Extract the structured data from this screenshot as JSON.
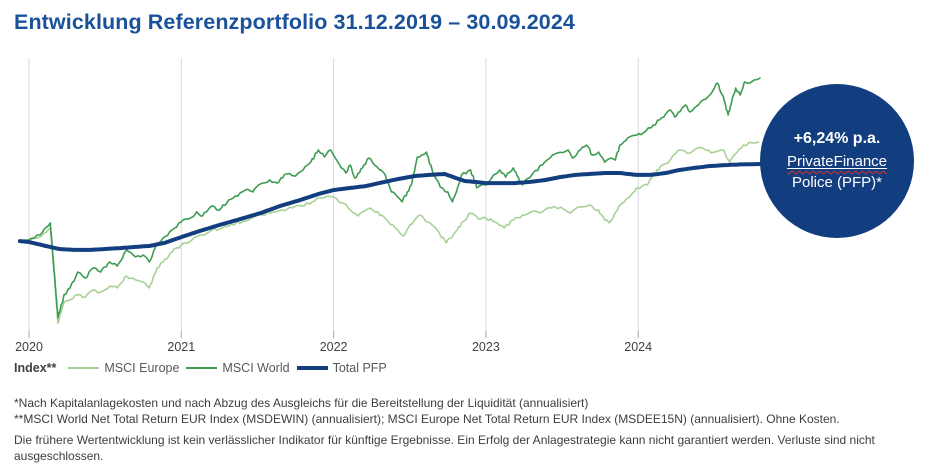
{
  "title": "Entwicklung Referenzportfolio 31.12.2019 – 30.09.2024",
  "badge": {
    "line1": "+6,24% p.a.",
    "line2": "PrivateFinance",
    "line3": "Police (PFP)*",
    "bg_color": "#123e7f",
    "text_color": "#ffffff"
  },
  "legend": {
    "prefix": "Index**",
    "items": [
      {
        "label": "MSCI Europe",
        "color": "#a8d198"
      },
      {
        "label": "MSCI World",
        "color": "#3f9b52"
      },
      {
        "label": "Total PFP",
        "color": "#123e7f"
      }
    ]
  },
  "footnotes": [
    "*Nach Kapitalanlagekosten und nach Abzug des Ausgleichs für die Bereitstellung der Liquidität (annualisiert)",
    "**MSCI World Net Total Return EUR Index (MSDEWIN) (annualisiert); MSCI Europe Net Total Return EUR Index (MSDEE15N) (annualisiert). Ohne Kosten.",
    "Die frühere Wertentwicklung ist kein verlässlicher Indikator für künftige Ergebnisse. Ein Erfolg der Anlagestrategie kann nicht garantiert werden. Verluste sind nicht ausgeschlossen."
  ],
  "chart_data": {
    "type": "line",
    "title": "Entwicklung Referenzportfolio 31.12.2019 – 30.09.2024",
    "normalization": "Index 31.12.2019 = 100 (no visible y-axis)",
    "annotation": "+6,24% p.a. PrivateFinance Police (PFP)*",
    "grid": "vertical year gridlines only",
    "legend_position": "below chart",
    "x_axis": {
      "unit": "years since 31.12.2019",
      "tick_labels": [
        "2020",
        "2021",
        "2022",
        "2023",
        "2024"
      ],
      "tick_positions": [
        0,
        1,
        2,
        3,
        4
      ]
    },
    "y_axis": {
      "visible": false,
      "implied_range": [
        60,
        178
      ]
    },
    "series": [
      {
        "name": "MSCI Europe",
        "color": "#a8d198",
        "width": 1.6,
        "jitter": 1.6,
        "points": [
          [
            -0.06,
            100
          ],
          [
            0,
            100.9
          ],
          [
            0.07,
            102.1
          ],
          [
            0.14,
            106
          ],
          [
            0.16,
            90.1
          ],
          [
            0.19,
            65.2
          ],
          [
            0.23,
            74.2
          ],
          [
            0.27,
            75.1
          ],
          [
            0.32,
            77.3
          ],
          [
            0.37,
            76.4
          ],
          [
            0.42,
            79.4
          ],
          [
            0.47,
            78.5
          ],
          [
            0.53,
            81.1
          ],
          [
            0.58,
            80.3
          ],
          [
            0.64,
            85.4
          ],
          [
            0.7,
            83.7
          ],
          [
            0.75,
            82.8
          ],
          [
            0.79,
            80.3
          ],
          [
            0.84,
            88.8
          ],
          [
            0.88,
            91.4
          ],
          [
            0.94,
            95.7
          ],
          [
            1.0,
            98.7
          ],
          [
            1.07,
            100.9
          ],
          [
            1.14,
            103
          ],
          [
            1.2,
            105.2
          ],
          [
            1.27,
            106
          ],
          [
            1.33,
            107.7
          ],
          [
            1.4,
            108.6
          ],
          [
            1.46,
            110.3
          ],
          [
            1.53,
            111.6
          ],
          [
            1.6,
            112.9
          ],
          [
            1.66,
            113.7
          ],
          [
            1.73,
            114.6
          ],
          [
            1.79,
            115.5
          ],
          [
            1.86,
            117.2
          ],
          [
            1.91,
            118.9
          ],
          [
            1.96,
            119.7
          ],
          [
            2.0,
            119.3
          ],
          [
            2.06,
            116.7
          ],
          [
            2.11,
            113.7
          ],
          [
            2.16,
            111.2
          ],
          [
            2.19,
            112.9
          ],
          [
            2.24,
            114.6
          ],
          [
            2.29,
            112.9
          ],
          [
            2.36,
            108.6
          ],
          [
            2.42,
            105.2
          ],
          [
            2.46,
            102.6
          ],
          [
            2.5,
            107.3
          ],
          [
            2.57,
            111.6
          ],
          [
            2.62,
            108.6
          ],
          [
            2.69,
            104.3
          ],
          [
            2.74,
            99.6
          ],
          [
            2.8,
            104.3
          ],
          [
            2.84,
            108.2
          ],
          [
            2.9,
            112.4
          ],
          [
            2.95,
            109.9
          ],
          [
            3.0,
            110.3
          ],
          [
            3.06,
            108.6
          ],
          [
            3.12,
            106
          ],
          [
            3.18,
            109.4
          ],
          [
            3.24,
            111.6
          ],
          [
            3.31,
            113.3
          ],
          [
            3.37,
            112.9
          ],
          [
            3.43,
            114.6
          ],
          [
            3.49,
            115
          ],
          [
            3.55,
            112.4
          ],
          [
            3.62,
            115
          ],
          [
            3.68,
            115.9
          ],
          [
            3.74,
            113.7
          ],
          [
            3.78,
            109.4
          ],
          [
            3.81,
            108.2
          ],
          [
            3.88,
            115.9
          ],
          [
            3.93,
            118.9
          ],
          [
            3.99,
            123.2
          ],
          [
            4.06,
            124.5
          ],
          [
            4.1,
            128.8
          ],
          [
            4.16,
            133
          ],
          [
            4.21,
            135.2
          ],
          [
            4.27,
            139.5
          ],
          [
            4.34,
            138.2
          ],
          [
            4.39,
            140.3
          ],
          [
            4.44,
            139.5
          ],
          [
            4.5,
            138.6
          ],
          [
            4.56,
            139.5
          ],
          [
            4.6,
            134.3
          ],
          [
            4.65,
            138.6
          ],
          [
            4.69,
            141.6
          ],
          [
            4.75,
            142.5
          ],
          [
            4.79,
            142.9
          ]
        ]
      },
      {
        "name": "MSCI World",
        "color": "#3f9b52",
        "width": 1.6,
        "jitter": 1.6,
        "points": [
          [
            -0.06,
            100
          ],
          [
            0,
            100.9
          ],
          [
            0.07,
            103
          ],
          [
            0.1,
            105.5
          ],
          [
            0.14,
            108.2
          ],
          [
            0.16,
            92
          ],
          [
            0.19,
            67.4
          ],
          [
            0.23,
            77.3
          ],
          [
            0.27,
            80.3
          ],
          [
            0.32,
            87.1
          ],
          [
            0.37,
            84.5
          ],
          [
            0.42,
            88.8
          ],
          [
            0.47,
            87.1
          ],
          [
            0.53,
            91.4
          ],
          [
            0.58,
            89.7
          ],
          [
            0.64,
            96.6
          ],
          [
            0.7,
            93.6
          ],
          [
            0.75,
            94.4
          ],
          [
            0.79,
            91.4
          ],
          [
            0.84,
            98.7
          ],
          [
            0.88,
            101.7
          ],
          [
            0.94,
            105.2
          ],
          [
            1.0,
            108.6
          ],
          [
            1.06,
            110.3
          ],
          [
            1.1,
            112.9
          ],
          [
            1.14,
            111.2
          ],
          [
            1.2,
            115.5
          ],
          [
            1.25,
            113.7
          ],
          [
            1.31,
            118
          ],
          [
            1.37,
            119.7
          ],
          [
            1.42,
            122.3
          ],
          [
            1.47,
            121.5
          ],
          [
            1.53,
            125.3
          ],
          [
            1.58,
            126.6
          ],
          [
            1.63,
            125.3
          ],
          [
            1.69,
            129.2
          ],
          [
            1.75,
            128.3
          ],
          [
            1.8,
            130.9
          ],
          [
            1.85,
            134.3
          ],
          [
            1.9,
            139.5
          ],
          [
            1.94,
            136.5
          ],
          [
            1.98,
            139.5
          ],
          [
            2.0,
            137.3
          ],
          [
            2.04,
            133
          ],
          [
            2.08,
            129.6
          ],
          [
            2.11,
            133
          ],
          [
            2.14,
            127.4
          ],
          [
            2.19,
            131.8
          ],
          [
            2.23,
            136
          ],
          [
            2.27,
            133
          ],
          [
            2.33,
            129.6
          ],
          [
            2.38,
            121.5
          ],
          [
            2.45,
            117.2
          ],
          [
            2.51,
            124.5
          ],
          [
            2.55,
            136.5
          ],
          [
            2.61,
            138.6
          ],
          [
            2.65,
            130
          ],
          [
            2.7,
            123.6
          ],
          [
            2.75,
            121.5
          ],
          [
            2.78,
            117.2
          ],
          [
            2.82,
            124.5
          ],
          [
            2.84,
            128.8
          ],
          [
            2.9,
            130.9
          ],
          [
            2.94,
            123.2
          ],
          [
            3.0,
            124.5
          ],
          [
            3.05,
            128.8
          ],
          [
            3.09,
            130.9
          ],
          [
            3.13,
            127.9
          ],
          [
            3.18,
            131.8
          ],
          [
            3.24,
            124.5
          ],
          [
            3.31,
            129.6
          ],
          [
            3.37,
            133
          ],
          [
            3.42,
            136
          ],
          [
            3.47,
            138.2
          ],
          [
            3.54,
            139.5
          ],
          [
            3.57,
            136
          ],
          [
            3.62,
            139.5
          ],
          [
            3.66,
            141.6
          ],
          [
            3.7,
            137.3
          ],
          [
            3.74,
            138.6
          ],
          [
            3.78,
            134.3
          ],
          [
            3.82,
            136
          ],
          [
            3.85,
            135.2
          ],
          [
            3.88,
            141.6
          ],
          [
            3.93,
            144.6
          ],
          [
            3.99,
            145.9
          ],
          [
            4.05,
            147.6
          ],
          [
            4.1,
            150.2
          ],
          [
            4.14,
            152.4
          ],
          [
            4.21,
            156.7
          ],
          [
            4.24,
            153.6
          ],
          [
            4.31,
            158.8
          ],
          [
            4.34,
            155.8
          ],
          [
            4.41,
            160.1
          ],
          [
            4.47,
            163.1
          ],
          [
            4.52,
            168.2
          ],
          [
            4.56,
            162.2
          ],
          [
            4.59,
            154.5
          ],
          [
            4.64,
            166.1
          ],
          [
            4.67,
            163.1
          ],
          [
            4.7,
            168.7
          ],
          [
            4.75,
            169
          ],
          [
            4.8,
            170.4
          ]
        ]
      },
      {
        "name": "Total PFP",
        "color": "#123e7f",
        "width": 4,
        "jitter": 0,
        "points": [
          [
            -0.06,
            100.4
          ],
          [
            0,
            100
          ],
          [
            0.11,
            98.3
          ],
          [
            0.2,
            97
          ],
          [
            0.3,
            96.6
          ],
          [
            0.4,
            96.6
          ],
          [
            0.5,
            97
          ],
          [
            0.6,
            97.4
          ],
          [
            0.7,
            97.9
          ],
          [
            0.79,
            98.3
          ],
          [
            0.89,
            99.6
          ],
          [
            1.0,
            102.1
          ],
          [
            1.12,
            104.7
          ],
          [
            1.25,
            107.3
          ],
          [
            1.39,
            109.9
          ],
          [
            1.52,
            112.4
          ],
          [
            1.65,
            115.5
          ],
          [
            1.78,
            118
          ],
          [
            1.9,
            120.6
          ],
          [
            2.0,
            122.3
          ],
          [
            2.11,
            123.2
          ],
          [
            2.21,
            124
          ],
          [
            2.3,
            125.3
          ],
          [
            2.42,
            127
          ],
          [
            2.53,
            128.3
          ],
          [
            2.63,
            128.8
          ],
          [
            2.73,
            129.2
          ],
          [
            2.8,
            127.5
          ],
          [
            2.86,
            126.2
          ],
          [
            2.93,
            125.8
          ],
          [
            3.0,
            125.3
          ],
          [
            3.09,
            125.3
          ],
          [
            3.19,
            125.3
          ],
          [
            3.29,
            125.8
          ],
          [
            3.39,
            126.6
          ],
          [
            3.49,
            127.9
          ],
          [
            3.59,
            128.8
          ],
          [
            3.68,
            129.2
          ],
          [
            3.78,
            129.6
          ],
          [
            3.88,
            129.6
          ],
          [
            3.99,
            128.8
          ],
          [
            4.08,
            128.8
          ],
          [
            4.18,
            129.6
          ],
          [
            4.27,
            130.9
          ],
          [
            4.37,
            131.8
          ],
          [
            4.47,
            132.6
          ],
          [
            4.57,
            133
          ],
          [
            4.67,
            133.3
          ],
          [
            4.82,
            133.5
          ]
        ]
      }
    ]
  },
  "style": {
    "title_color": "#1a529a",
    "gridline_color": "#d9d9d9",
    "tick_color": "#a6a6a6",
    "tick_label_color": "#3f3f3f"
  }
}
